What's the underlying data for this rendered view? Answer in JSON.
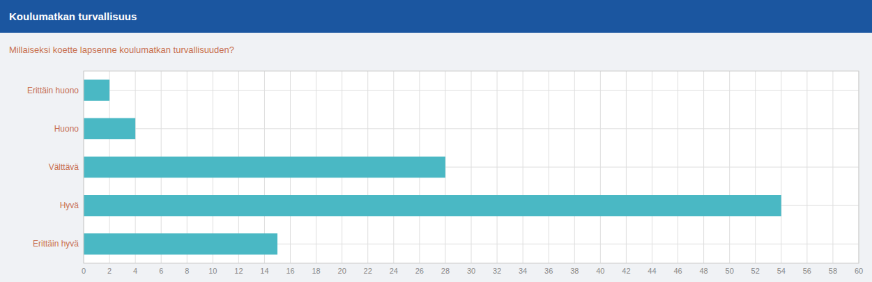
{
  "chart_data": {
    "type": "bar",
    "orientation": "horizontal",
    "title": "Koulumatkan turvallisuus",
    "subtitle": "Millaiseksi koette lapsenne koulumatkan turvallisuuden?",
    "categories": [
      "Erittäin hyvä",
      "Hyvä",
      "Välttävä",
      "Huono",
      "Erittäin huono"
    ],
    "values": [
      15,
      54,
      28,
      4,
      2
    ],
    "color": "#4ab8c4",
    "xlim": [
      0,
      60
    ],
    "xticks": [
      0,
      2,
      4,
      6,
      8,
      10,
      12,
      14,
      16,
      18,
      20,
      22,
      24,
      26,
      28,
      30,
      32,
      34,
      36,
      38,
      40,
      42,
      44,
      46,
      48,
      50,
      52,
      54,
      56,
      58,
      60
    ],
    "grid": true
  }
}
